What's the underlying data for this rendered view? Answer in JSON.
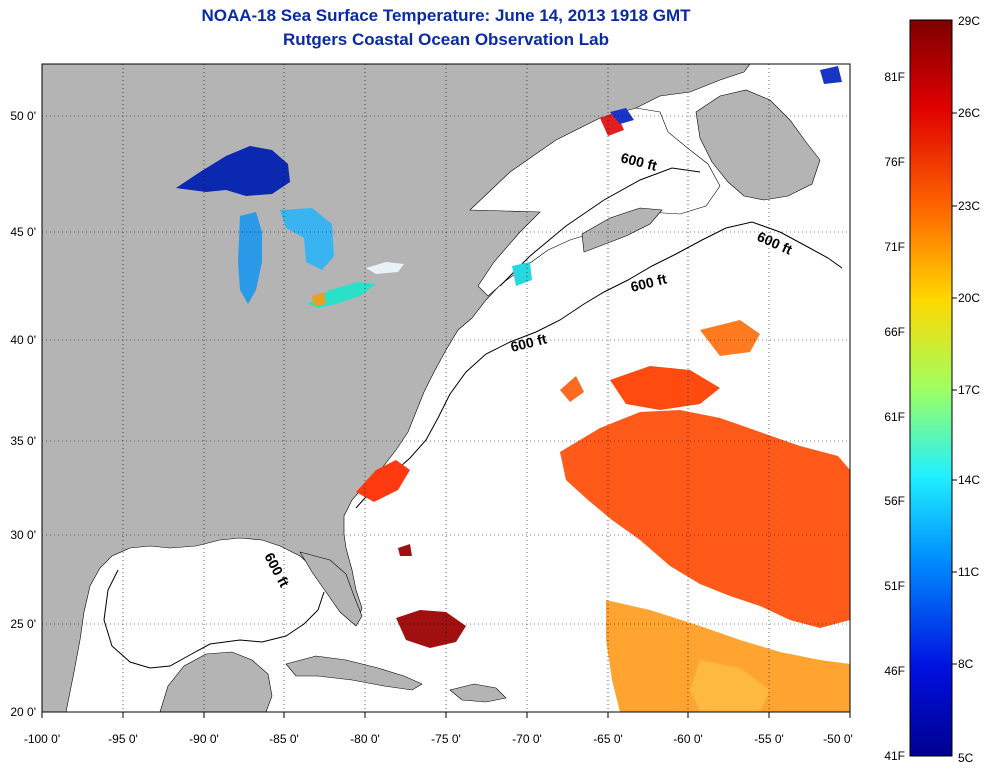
{
  "title_line1": "NOAA-18 Sea Surface Temperature:  June 14, 2013 1918 GMT",
  "title_line2": "Rutgers Coastal Ocean Observation Lab",
  "lon_ticks": [
    "-100 0'",
    "-95 0'",
    "-90 0'",
    "-85 0'",
    "-80 0'",
    "-75 0'",
    "-70 0'",
    "-65 0'",
    "-60 0'",
    "-55 0'",
    "-50 0'"
  ],
  "lat_ticks": [
    "20 0'",
    "25 0'",
    "30 0'",
    "35 0'",
    "40 0'",
    "45 0'",
    "50 0'"
  ],
  "contour_label": "600 ft",
  "colorbar": {
    "fahrenheit_labels": [
      "81F",
      "76F",
      "71F",
      "66F",
      "61F",
      "56F",
      "51F",
      "46F",
      "41F"
    ],
    "celsius_labels": [
      "29C",
      "26C",
      "23C",
      "20C",
      "17C",
      "14C",
      "11C",
      "8C",
      "5C"
    ],
    "colors": [
      "#7f0000",
      "#e00000",
      "#ff6a00",
      "#ffd800",
      "#a0ff60",
      "#20f0ff",
      "#0090ff",
      "#0010e0",
      "#00008f"
    ]
  },
  "colors": {
    "land": "#b4b4b4",
    "ocean_nodata": "#ffffff",
    "title": "#0a2aa8"
  }
}
